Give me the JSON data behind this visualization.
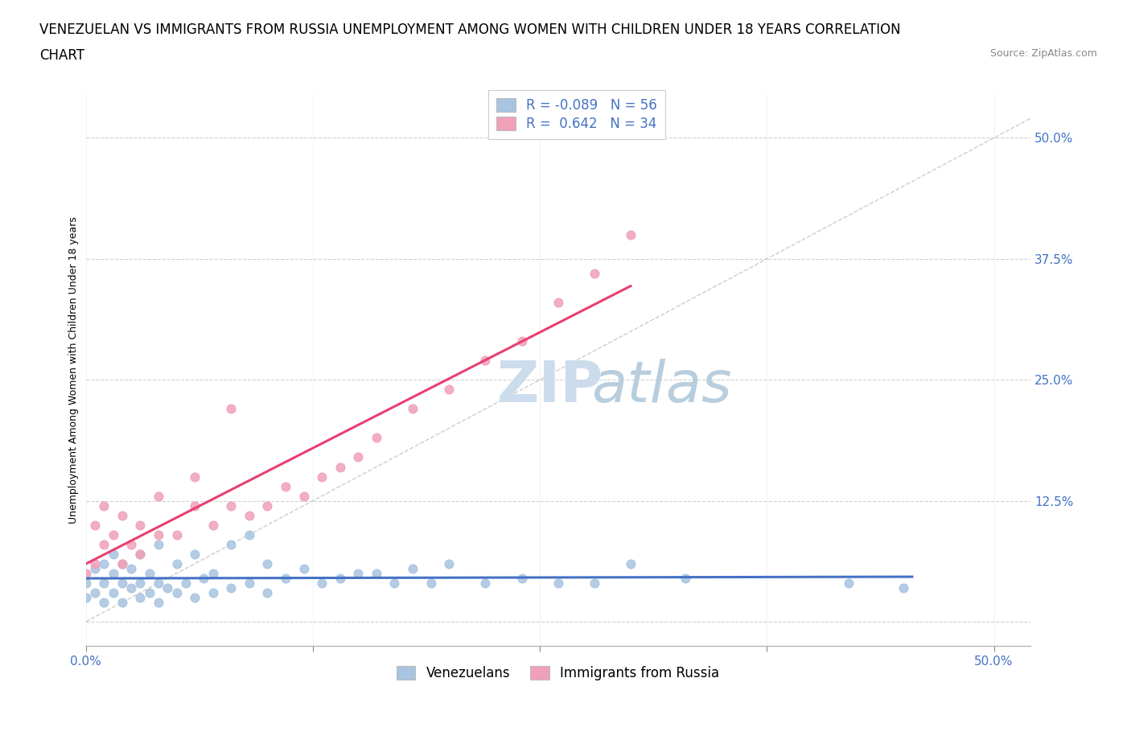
{
  "title_line1": "VENEZUELAN VS IMMIGRANTS FROM RUSSIA UNEMPLOYMENT AMONG WOMEN WITH CHILDREN UNDER 18 YEARS CORRELATION",
  "title_line2": "CHART",
  "source": "Source: ZipAtlas.com",
  "ylabel": "Unemployment Among Women with Children Under 18 years",
  "xlim": [
    0.0,
    0.52
  ],
  "ylim": [
    -0.025,
    0.545
  ],
  "yticks": [
    0.0,
    0.125,
    0.25,
    0.375,
    0.5
  ],
  "ytick_labels": [
    "",
    "12.5%",
    "25.0%",
    "37.5%",
    "50.0%"
  ],
  "xticks": [
    0.0,
    0.125,
    0.25,
    0.375,
    0.5
  ],
  "xtick_labels": [
    "0.0%",
    "",
    "",
    "",
    "50.0%"
  ],
  "r_venezuelan": -0.089,
  "n_venezuelan": 56,
  "r_russia": 0.642,
  "n_russia": 34,
  "venezuelan_color": "#a8c4e0",
  "russia_color": "#f0a0b8",
  "trend_venezuelan_color": "#4472c4",
  "trend_russia_color": "#e84070",
  "diagonal_color": "#c0c0c0",
  "grid_color": "#d0d0d0",
  "venezuelan_x": [
    0.0,
    0.0,
    0.005,
    0.005,
    0.01,
    0.01,
    0.01,
    0.015,
    0.015,
    0.015,
    0.02,
    0.02,
    0.02,
    0.025,
    0.025,
    0.03,
    0.03,
    0.03,
    0.035,
    0.035,
    0.04,
    0.04,
    0.04,
    0.045,
    0.05,
    0.05,
    0.055,
    0.06,
    0.06,
    0.065,
    0.07,
    0.07,
    0.08,
    0.08,
    0.09,
    0.09,
    0.1,
    0.1,
    0.11,
    0.12,
    0.13,
    0.14,
    0.15,
    0.16,
    0.17,
    0.18,
    0.19,
    0.2,
    0.22,
    0.24,
    0.26,
    0.28,
    0.3,
    0.33,
    0.42,
    0.45
  ],
  "venezuelan_y": [
    0.025,
    0.04,
    0.03,
    0.055,
    0.02,
    0.04,
    0.06,
    0.03,
    0.05,
    0.07,
    0.02,
    0.04,
    0.06,
    0.035,
    0.055,
    0.025,
    0.04,
    0.07,
    0.03,
    0.05,
    0.02,
    0.04,
    0.08,
    0.035,
    0.03,
    0.06,
    0.04,
    0.025,
    0.07,
    0.045,
    0.03,
    0.05,
    0.035,
    0.08,
    0.04,
    0.09,
    0.03,
    0.06,
    0.045,
    0.055,
    0.04,
    0.045,
    0.05,
    0.05,
    0.04,
    0.055,
    0.04,
    0.06,
    0.04,
    0.045,
    0.04,
    0.04,
    0.06,
    0.045,
    0.04,
    0.035
  ],
  "russia_x": [
    0.0,
    0.005,
    0.005,
    0.01,
    0.01,
    0.015,
    0.02,
    0.02,
    0.025,
    0.03,
    0.03,
    0.04,
    0.04,
    0.05,
    0.06,
    0.06,
    0.07,
    0.08,
    0.08,
    0.09,
    0.1,
    0.11,
    0.12,
    0.13,
    0.14,
    0.15,
    0.16,
    0.18,
    0.2,
    0.22,
    0.24,
    0.26,
    0.28,
    0.3
  ],
  "russia_y": [
    0.05,
    0.06,
    0.1,
    0.08,
    0.12,
    0.09,
    0.06,
    0.11,
    0.08,
    0.07,
    0.1,
    0.09,
    0.13,
    0.09,
    0.12,
    0.15,
    0.1,
    0.12,
    0.22,
    0.11,
    0.12,
    0.14,
    0.13,
    0.15,
    0.16,
    0.17,
    0.19,
    0.22,
    0.24,
    0.27,
    0.29,
    0.33,
    0.36,
    0.4
  ],
  "title_fontsize": 12,
  "source_fontsize": 9,
  "axis_label_fontsize": 9,
  "tick_fontsize": 11,
  "legend_fontsize": 12
}
